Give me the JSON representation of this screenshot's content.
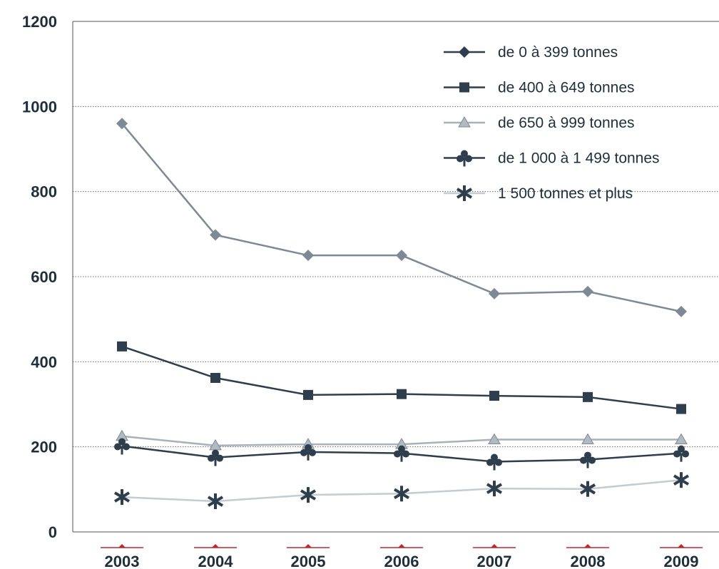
{
  "chart_data": {
    "type": "line",
    "categories": [
      "2003",
      "2004",
      "2005",
      "2006",
      "2007",
      "2008",
      "2009"
    ],
    "ylim": [
      0,
      1200
    ],
    "yticks": [
      0,
      200,
      400,
      600,
      800,
      1000,
      1200
    ],
    "grid": true,
    "legend_position": "top-right",
    "series": [
      {
        "name": "de 0 à 399 tonnes",
        "marker": "diamond",
        "color": "#7d8a96",
        "legend_color": "#2e3e4c",
        "values": [
          960,
          698,
          650,
          650,
          560,
          565,
          518
        ]
      },
      {
        "name": "de 400 à 649 tonnes",
        "marker": "square",
        "color": "#2e3e4c",
        "legend_color": "#2e3e4c",
        "values": [
          436,
          362,
          322,
          324,
          320,
          317,
          289
        ]
      },
      {
        "name": "de 650 à 999 tonnes",
        "marker": "triangle",
        "color": "#a8b1b9",
        "legend_color": "#a8b1b9",
        "values": [
          225,
          203,
          206,
          206,
          217,
          217,
          217
        ]
      },
      {
        "name": "de 1 000 à 1 499 tonnes",
        "marker": "club",
        "color": "#2e3e4c",
        "legend_color": "#2e3e4c",
        "values": [
          202,
          175,
          188,
          185,
          165,
          170,
          185
        ]
      },
      {
        "name": "1 500 tonnes et plus",
        "marker": "asterisk",
        "color": "#c4cbd1",
        "legend_color": "#c4cbd1",
        "values": [
          82,
          72,
          87,
          90,
          102,
          101,
          122
        ]
      }
    ]
  }
}
